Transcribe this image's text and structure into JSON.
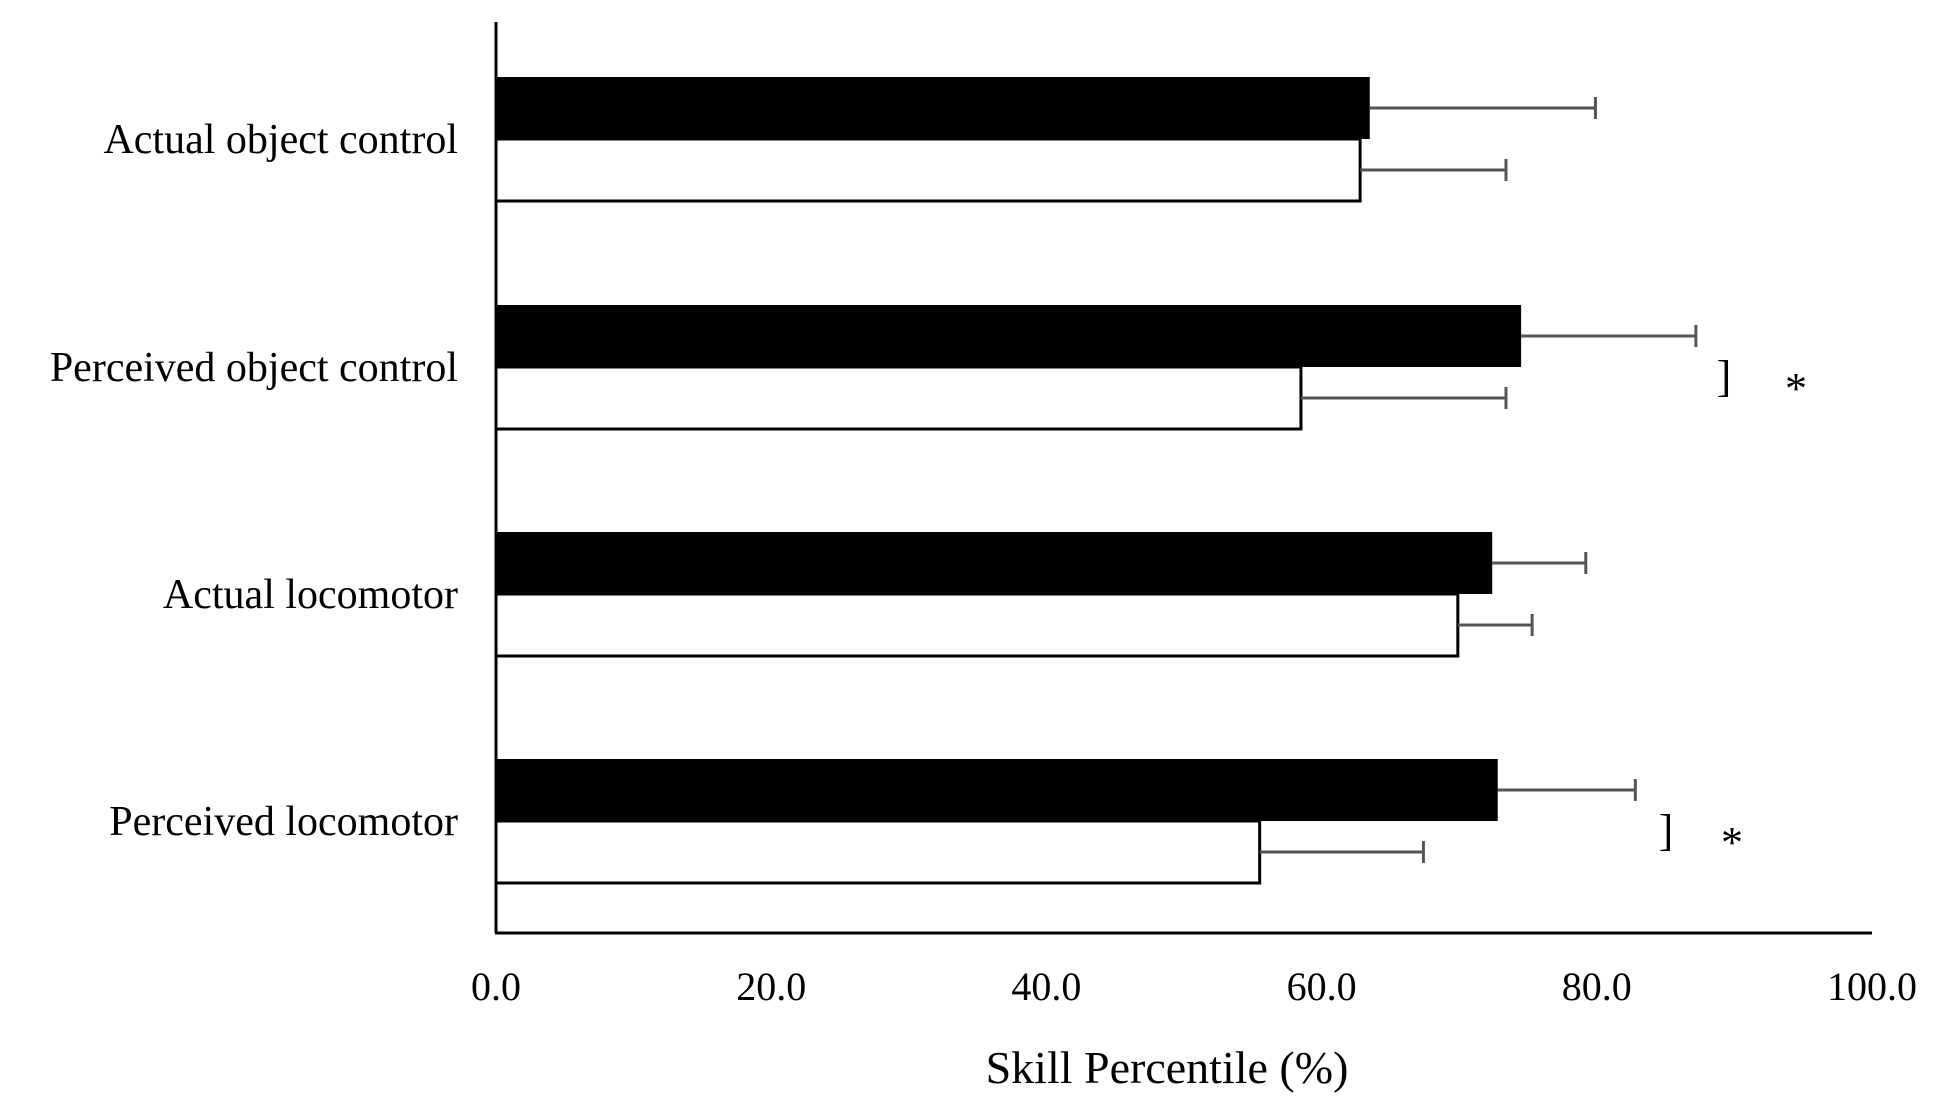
{
  "chart_data": {
    "type": "bar",
    "orientation": "horizontal",
    "xlabel": "Skill Percentile (%)",
    "xlim": [
      0,
      100
    ],
    "xticks": [
      "0.0",
      "20.0",
      "40.0",
      "60.0",
      "80.0",
      "100.0"
    ],
    "categories": [
      "Actual object control",
      "Perceived object control",
      "Actual locomotor",
      "Perceived locomotor"
    ],
    "series": [
      {
        "fill": "#000000",
        "values": [
          63.5,
          74.5,
          72.4,
          72.8
        ],
        "error": [
          16.4,
          12.7,
          6.8,
          10.0
        ]
      },
      {
        "fill": "#ffffff",
        "values": [
          62.8,
          58.5,
          69.9,
          55.5
        ],
        "error": [
          10.6,
          14.9,
          5.4,
          11.9
        ]
      }
    ],
    "significance": [
      {
        "category": "Perceived object control",
        "bracket": "]",
        "mark": "*"
      },
      {
        "category": "Perceived locomotor",
        "bracket": "]",
        "mark": "*"
      }
    ],
    "grid": false,
    "legend": "none",
    "colors": {
      "axis": "#000000",
      "error_bar": "#555555"
    }
  }
}
